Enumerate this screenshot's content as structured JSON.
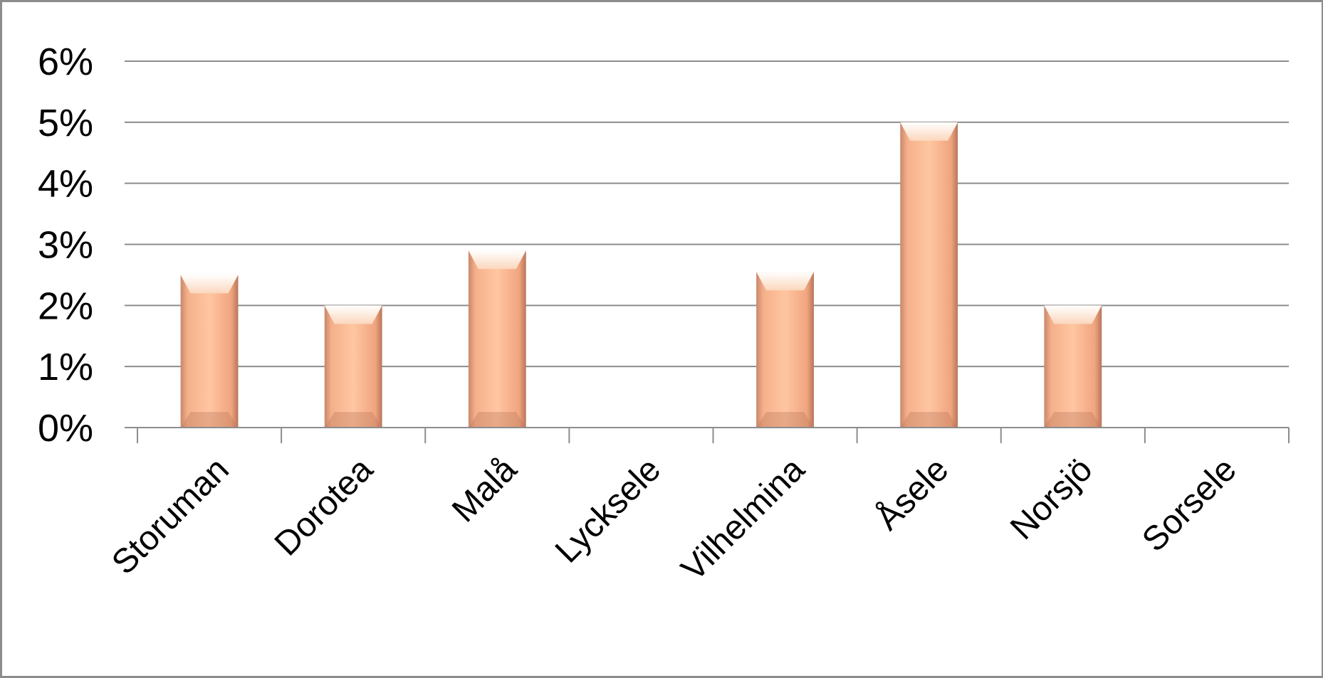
{
  "chart_data": {
    "type": "bar",
    "categories": [
      "Storuman",
      "Dorotea",
      "Malå",
      "Lycksele",
      "Vilhelmina",
      "Åsele",
      "Norsjö",
      "Sorsele"
    ],
    "series": [
      {
        "values": [
          0.025,
          0.02,
          0.029,
          0.0,
          0.0255,
          0.05,
          0.02,
          0.0
        ]
      }
    ],
    "yticks": [
      "0%",
      "1%",
      "2%",
      "3%",
      "4%",
      "5%",
      "6%"
    ],
    "ylim": [
      0,
      0.06
    ],
    "grid": true,
    "legend": "none",
    "bar_color": "#f5a97c",
    "bar_highlight_color": "#fde6d3",
    "bar_shadow_color": "#b9765a",
    "gridline_color": "#8c8c8c",
    "frame_color": "#8c8c8c"
  }
}
